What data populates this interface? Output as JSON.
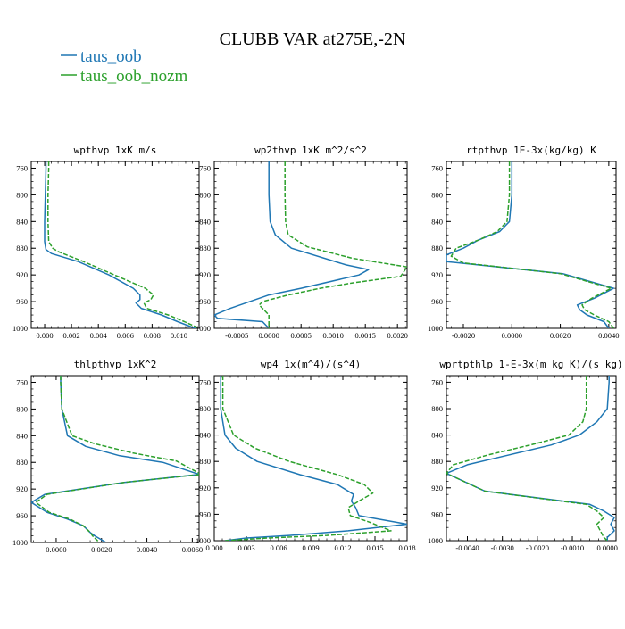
{
  "title": "CLUBB VAR at275E,-2N",
  "legend": [
    {
      "label": "taus_oob",
      "color": "#1f77b4",
      "dash": "solid"
    },
    {
      "label": "taus_oob_nozm",
      "color": "#2ca02c",
      "dash": "dashed"
    }
  ],
  "chart_data": [
    {
      "type": "line",
      "title": "wpthvp  1xK m/s",
      "ylim": [
        1000,
        750
      ],
      "xlim": [
        -0.001,
        0.0115
      ],
      "yticks": [
        1000,
        960,
        920,
        880,
        840,
        800,
        760
      ],
      "xticks": [
        "0.000",
        "0.002",
        "0.004",
        "0.006",
        "0.008",
        "0.010"
      ],
      "xtick_values": [
        0,
        0.002,
        0.004,
        0.006,
        0.008,
        0.01
      ],
      "series": [
        {
          "name": "taus_oob",
          "color": "#1f77b4",
          "dash": "solid",
          "y": [
            750,
            760,
            800,
            840,
            870,
            882,
            888,
            900,
            920,
            940,
            950,
            957,
            962,
            970,
            980,
            990,
            1000
          ],
          "x": [
            0.0001,
            0.0001,
            5e-05,
            0.0,
            0.0,
            0.0001,
            0.0005,
            0.0025,
            0.0048,
            0.0066,
            0.0071,
            0.0071,
            0.0068,
            0.0072,
            0.0087,
            0.0099,
            0.0112
          ]
        },
        {
          "name": "taus_oob_nozm",
          "color": "#2ca02c",
          "dash": "dashed",
          "y": [
            750,
            760,
            800,
            840,
            870,
            880,
            885,
            900,
            920,
            940,
            950,
            957,
            962,
            970,
            980,
            990,
            1000
          ],
          "x": [
            0.0003,
            0.0003,
            0.00025,
            0.00025,
            0.0003,
            0.0006,
            0.001,
            0.0029,
            0.0052,
            0.0075,
            0.0081,
            0.0079,
            0.0074,
            0.0076,
            0.0092,
            0.0104,
            0.0115
          ]
        }
      ]
    },
    {
      "type": "line",
      "title": "wp2thvp  1xK m^2/s^2",
      "ylim": [
        1000,
        750
      ],
      "xlim": [
        -0.00085,
        0.00215
      ],
      "yticks": [
        1000,
        960,
        920,
        880,
        840,
        800,
        760
      ],
      "xticks": [
        "-0.0005",
        "0.0000",
        "0.0005",
        "0.0010",
        "0.0015",
        "0.0020"
      ],
      "xtick_values": [
        -0.0005,
        0,
        0.0005,
        0.001,
        0.0015,
        0.002
      ],
      "series": [
        {
          "name": "taus_oob",
          "color": "#1f77b4",
          "dash": "solid",
          "y": [
            750,
            760,
            800,
            840,
            860,
            880,
            905,
            912,
            920,
            940,
            950,
            960,
            970,
            980,
            985,
            990,
            1000
          ],
          "x": [
            0.0,
            0.0,
            0.0,
            2e-05,
            0.0001,
            0.00035,
            0.0012,
            0.00155,
            0.0014,
            0.0005,
            0.0,
            -0.0003,
            -0.0006,
            -0.00085,
            -0.0008,
            -0.0001,
            0.0
          ]
        },
        {
          "name": "taus_oob_nozm",
          "color": "#2ca02c",
          "dash": "dashed",
          "y": [
            750,
            760,
            800,
            840,
            860,
            878,
            895,
            908,
            922,
            932,
            940,
            950,
            960,
            965,
            970,
            980,
            990,
            1000
          ],
          "x": [
            0.00025,
            0.00025,
            0.00025,
            0.00026,
            0.0003,
            0.0006,
            0.0013,
            0.00215,
            0.00205,
            0.0013,
            0.0008,
            0.0003,
            -0.0001,
            -0.00015,
            -0.0001,
            0.0,
            0.0,
            0.0
          ]
        }
      ]
    },
    {
      "type": "line",
      "title": "rtpthvp  1E-3x(kg/kg) K",
      "ylim": [
        1000,
        750
      ],
      "xlim": [
        -0.0027,
        0.0043
      ],
      "yticks": [
        1000,
        960,
        920,
        880,
        840,
        800,
        760
      ],
      "xticks": [
        "-0.0020",
        "0.0000",
        "0.0020",
        "0.0040"
      ],
      "xtick_values": [
        -0.002,
        0,
        0.002,
        0.004
      ],
      "series": [
        {
          "name": "taus_oob",
          "color": "#1f77b4",
          "dash": "solid",
          "y": [
            750,
            760,
            800,
            840,
            855,
            868,
            880,
            890,
            900,
            918,
            940,
            955,
            965,
            972,
            980,
            990,
            1000
          ],
          "x": [
            0.0,
            0.0,
            0.0,
            -0.0001,
            -0.0005,
            -0.0014,
            -0.002,
            -0.0027,
            -0.0027,
            0.0021,
            0.0042,
            0.0034,
            0.0027,
            0.0028,
            0.0031,
            0.0038,
            0.004
          ]
        },
        {
          "name": "taus_oob_nozm",
          "color": "#2ca02c",
          "dash": "dashed",
          "y": [
            750,
            760,
            800,
            840,
            855,
            868,
            880,
            892,
            902,
            918,
            940,
            955,
            965,
            972,
            980,
            990,
            1000
          ],
          "x": [
            -0.0001,
            -0.0001,
            -0.0001,
            -0.0002,
            -0.0006,
            -0.0014,
            -0.0023,
            -0.0025,
            -0.002,
            0.002,
            0.0041,
            0.0033,
            0.0029,
            0.003,
            0.0034,
            0.004,
            0.0042
          ]
        }
      ]
    },
    {
      "type": "line",
      "title": "thlpthvp  1xK^2",
      "ylim": [
        1000,
        750
      ],
      "xlim": [
        -0.0011,
        0.0063
      ],
      "yticks": [
        1000,
        960,
        920,
        880,
        840,
        800,
        760
      ],
      "xticks": [
        "0.0000",
        "0.0020",
        "0.0040",
        "0.0060"
      ],
      "xtick_values": [
        0,
        0.002,
        0.004,
        0.006
      ],
      "series": [
        {
          "name": "taus_oob",
          "color": "#1f77b4",
          "dash": "solid",
          "y": [
            750,
            760,
            800,
            840,
            856,
            870,
            880,
            898,
            910,
            928,
            940,
            955,
            965,
            975,
            985,
            990,
            1000
          ],
          "x": [
            0.0002,
            0.0002,
            0.00025,
            0.0005,
            0.0013,
            0.0028,
            0.0047,
            0.0063,
            0.003,
            -0.0005,
            -0.0011,
            -0.0004,
            0.0005,
            0.0012,
            0.0015,
            0.0017,
            0.0022
          ]
        },
        {
          "name": "taus_oob_nozm",
          "color": "#2ca02c",
          "dash": "dashed",
          "y": [
            750,
            760,
            800,
            840,
            852,
            866,
            878,
            898,
            910,
            928,
            940,
            955,
            965,
            975,
            985,
            990,
            1000
          ],
          "x": [
            0.0002,
            0.0002,
            0.00025,
            0.0007,
            0.0017,
            0.0034,
            0.0053,
            0.0064,
            0.003,
            -0.0004,
            -0.0009,
            -0.0003,
            0.0006,
            0.0012,
            0.0015,
            0.0016,
            0.0019
          ]
        }
      ]
    },
    {
      "type": "line",
      "title": "wp4  1x(m^4)/(s^4)",
      "ylim": [
        1000,
        750
      ],
      "xlim": [
        0,
        0.018
      ],
      "yticks": [
        1000,
        960,
        920,
        880,
        840,
        800,
        760
      ],
      "xticks": [
        "0.000",
        "0.003",
        "0.006",
        "0.009",
        "0.012",
        "0.015",
        "0.018"
      ],
      "xtick_values": [
        0,
        0.003,
        0.006,
        0.009,
        0.012,
        0.015,
        0.018
      ],
      "series": [
        {
          "name": "taus_oob",
          "color": "#1f77b4",
          "dash": "solid",
          "y": [
            750,
            760,
            800,
            840,
            860,
            880,
            900,
            915,
            930,
            940,
            950,
            962,
            975,
            985,
            992,
            996,
            1000
          ],
          "x": [
            0.0006,
            0.0006,
            0.0006,
            0.001,
            0.002,
            0.004,
            0.008,
            0.0115,
            0.013,
            0.0128,
            0.0132,
            0.0135,
            0.018,
            0.0125,
            0.007,
            0.003,
            0.001
          ]
        },
        {
          "name": "taus_oob_nozm",
          "color": "#2ca02c",
          "dash": "dashed",
          "y": [
            750,
            760,
            800,
            840,
            860,
            880,
            900,
            915,
            928,
            940,
            950,
            962,
            972,
            985,
            992,
            996,
            1000
          ],
          "x": [
            0.0008,
            0.0008,
            0.0008,
            0.0018,
            0.0038,
            0.007,
            0.0115,
            0.014,
            0.0148,
            0.0135,
            0.0125,
            0.0127,
            0.0145,
            0.0165,
            0.0105,
            0.005,
            0.001
          ]
        }
      ]
    },
    {
      "type": "line",
      "title": "wprtpthlp  1-E-3x(m kg K)/(s kg)",
      "ylim": [
        1000,
        750
      ],
      "xlim": [
        -0.0046,
        0.00025
      ],
      "yticks": [
        1000,
        960,
        920,
        880,
        840,
        800,
        760
      ],
      "xticks": [
        "-0.0040",
        "-0.0030",
        "-0.0020",
        "-0.0010",
        "0.0000"
      ],
      "xtick_values": [
        -0.004,
        -0.003,
        -0.002,
        -0.001,
        0
      ],
      "series": [
        {
          "name": "taus_oob",
          "color": "#1f77b4",
          "dash": "solid",
          "y": [
            750,
            760,
            800,
            820,
            840,
            855,
            870,
            885,
            898,
            925,
            945,
            955,
            965,
            975,
            985,
            995,
            1000
          ],
          "x": [
            5e-05,
            5e-05,
            0.0,
            -0.0003,
            -0.0008,
            -0.0016,
            -0.0028,
            -0.004,
            -0.0046,
            -0.0035,
            -0.0005,
            -0.0001,
            0.0002,
            0.0001,
            0.0002,
            0.0,
            0.0
          ]
        },
        {
          "name": "taus_oob_nozm",
          "color": "#2ca02c",
          "dash": "dashed",
          "y": [
            750,
            760,
            800,
            820,
            840,
            855,
            870,
            885,
            898,
            925,
            945,
            955,
            965,
            975,
            985,
            995,
            1000
          ],
          "x": [
            -0.0006,
            -0.0006,
            -0.0006,
            -0.0007,
            -0.0011,
            -0.0022,
            -0.0034,
            -0.0044,
            -0.0046,
            -0.0035,
            -0.0006,
            -0.0003,
            -0.0001,
            -0.0003,
            -0.0002,
            -0.0001,
            0.0
          ]
        }
      ]
    }
  ]
}
